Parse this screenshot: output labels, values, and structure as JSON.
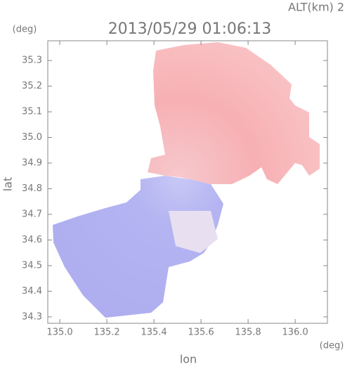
{
  "chart_data": {
    "type": "map",
    "title": "2013/05/29 01:06:13",
    "subtitle": "ALT(km) 2.0",
    "x_label": "lon",
    "y_label": "lat",
    "x_unit": "(deg)",
    "y_unit": "(deg)",
    "xlim": [
      134.949,
      136.137
    ],
    "ylim": [
      34.275,
      35.377
    ],
    "xticks": [
      {
        "value": 135,
        "label": "135.0"
      },
      135.2,
      135.4,
      135.6,
      135.8,
      {
        "value": 136,
        "label": "136.0"
      }
    ],
    "yticks": [
      34.3,
      34.4,
      34.5,
      34.6,
      34.7,
      34.8,
      34.9,
      {
        "value": 35,
        "label": "35.0"
      },
      35.1,
      35.2,
      35.3
    ]
  }
}
